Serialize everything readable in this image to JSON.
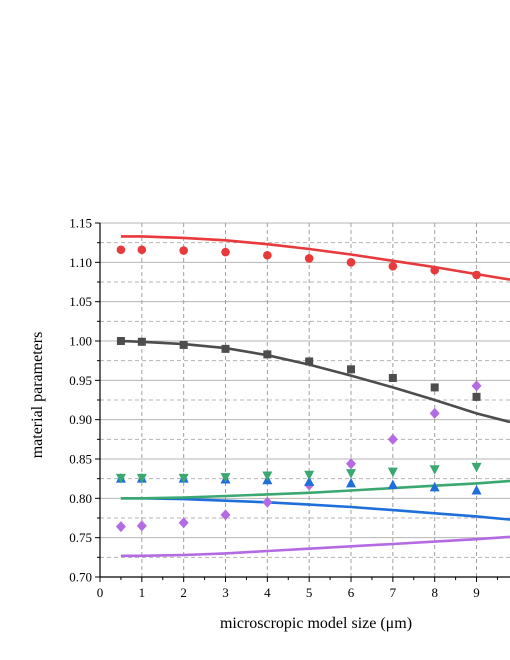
{
  "chart_data": {
    "type": "scatter",
    "title": "",
    "xlabel": "microscropic model size (μm)",
    "ylabel": "material parameters",
    "xlim": [
      0,
      9.8
    ],
    "ylim": [
      0.7,
      1.15
    ],
    "x_ticks": [
      "0",
      "1",
      "2",
      "3",
      "4",
      "5",
      "6",
      "7",
      "8",
      "9"
    ],
    "y_ticks": [
      "0.70",
      "0.75",
      "0.80",
      "0.85",
      "0.90",
      "0.95",
      "1.00",
      "1.05",
      "1.10",
      "1.15"
    ],
    "grid": true,
    "legend": "none",
    "series": [
      {
        "marker": "circle",
        "color": "#e8393b",
        "points": [
          [
            0.5,
            1.116
          ],
          [
            1,
            1.116
          ],
          [
            2,
            1.115
          ],
          [
            3,
            1.113
          ],
          [
            4,
            1.109
          ],
          [
            5,
            1.105
          ],
          [
            6,
            1.1
          ],
          [
            7,
            1.095
          ],
          [
            8,
            1.09
          ],
          [
            9,
            1.084
          ]
        ],
        "fit": [
          [
            0.5,
            1.133
          ],
          [
            1,
            1.133
          ],
          [
            2,
            1.131
          ],
          [
            3,
            1.128
          ],
          [
            4,
            1.123
          ],
          [
            5,
            1.117
          ],
          [
            6,
            1.11
          ],
          [
            7,
            1.102
          ],
          [
            8,
            1.094
          ],
          [
            9,
            1.085
          ],
          [
            9.8,
            1.078
          ]
        ]
      },
      {
        "marker": "square",
        "color": "#4d4d4d",
        "points": [
          [
            0.5,
            1.0
          ],
          [
            1,
            0.999
          ],
          [
            2,
            0.995
          ],
          [
            3,
            0.99
          ],
          [
            4,
            0.983
          ],
          [
            5,
            0.974
          ],
          [
            6,
            0.964
          ],
          [
            7,
            0.953
          ],
          [
            8,
            0.941
          ],
          [
            9,
            0.929
          ]
        ],
        "fit": [
          [
            0.5,
            1.0
          ],
          [
            1,
            0.999
          ],
          [
            2,
            0.996
          ],
          [
            3,
            0.991
          ],
          [
            4,
            0.982
          ],
          [
            5,
            0.97
          ],
          [
            6,
            0.956
          ],
          [
            7,
            0.941
          ],
          [
            8,
            0.925
          ],
          [
            9,
            0.908
          ],
          [
            9.8,
            0.897
          ]
        ]
      },
      {
        "marker": "diamond",
        "color": "#b36ae2",
        "points": [
          [
            0.5,
            0.764
          ],
          [
            1,
            0.765
          ],
          [
            2,
            0.769
          ],
          [
            3,
            0.779
          ],
          [
            4,
            0.795
          ],
          [
            5,
            0.817
          ],
          [
            6,
            0.844
          ],
          [
            7,
            0.875
          ],
          [
            8,
            0.908
          ],
          [
            9,
            0.943
          ]
        ],
        "fit": [
          [
            0.5,
            0.727
          ],
          [
            1,
            0.727
          ],
          [
            2,
            0.728
          ],
          [
            3,
            0.73
          ],
          [
            4,
            0.733
          ],
          [
            5,
            0.736
          ],
          [
            6,
            0.739
          ],
          [
            7,
            0.742
          ],
          [
            8,
            0.745
          ],
          [
            9,
            0.748
          ],
          [
            9.8,
            0.751
          ]
        ]
      },
      {
        "marker": "triangle-up",
        "color": "#1e6fd9",
        "points": [
          [
            0.5,
            0.825
          ],
          [
            1,
            0.825
          ],
          [
            2,
            0.825
          ],
          [
            3,
            0.824
          ],
          [
            4,
            0.823
          ],
          [
            5,
            0.821
          ],
          [
            6,
            0.819
          ],
          [
            7,
            0.817
          ],
          [
            8,
            0.814
          ],
          [
            9,
            0.81
          ]
        ],
        "fit": [
          [
            0.5,
            0.8
          ],
          [
            1,
            0.8
          ],
          [
            2,
            0.799
          ],
          [
            3,
            0.797
          ],
          [
            4,
            0.795
          ],
          [
            5,
            0.792
          ],
          [
            6,
            0.789
          ],
          [
            7,
            0.785
          ],
          [
            8,
            0.781
          ],
          [
            9,
            0.777
          ],
          [
            9.8,
            0.773
          ]
        ]
      },
      {
        "marker": "triangle-down",
        "color": "#3aa870",
        "points": [
          [
            0.5,
            0.826
          ],
          [
            1,
            0.826
          ],
          [
            2,
            0.826
          ],
          [
            3,
            0.827
          ],
          [
            4,
            0.829
          ],
          [
            5,
            0.83
          ],
          [
            6,
            0.832
          ],
          [
            7,
            0.834
          ],
          [
            8,
            0.837
          ],
          [
            9,
            0.84
          ]
        ],
        "fit": [
          [
            0.5,
            0.8
          ],
          [
            1,
            0.8
          ],
          [
            2,
            0.801
          ],
          [
            3,
            0.803
          ],
          [
            4,
            0.805
          ],
          [
            5,
            0.807
          ],
          [
            6,
            0.81
          ],
          [
            7,
            0.813
          ],
          [
            8,
            0.816
          ],
          [
            9,
            0.819
          ],
          [
            9.8,
            0.822
          ]
        ]
      }
    ]
  }
}
